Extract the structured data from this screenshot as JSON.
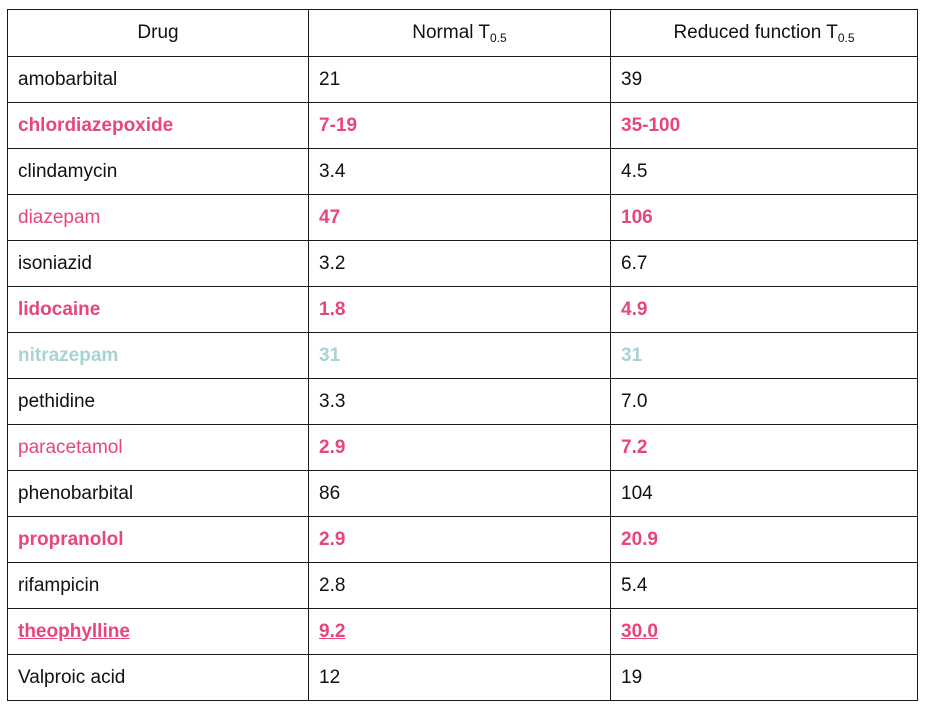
{
  "headers": {
    "drug": "Drug",
    "normal": "Normal T",
    "normal_sub": "0.5",
    "reduced": "Reduced function T",
    "reduced_sub": "0.5"
  },
  "rows": [
    {
      "drug": "amobarbital",
      "normal": "21",
      "reduced": "39"
    },
    {
      "drug": "chlordiazepoxide",
      "normal": "7-19",
      "reduced": "35-100"
    },
    {
      "drug": "clindamycin",
      "normal": "3.4",
      "reduced": "4.5"
    },
    {
      "drug": "diazepam",
      "normal": "47",
      "reduced": "106"
    },
    {
      "drug": "isoniazid",
      "normal": "3.2",
      "reduced": "6.7"
    },
    {
      "drug": "lidocaine",
      "normal": "1.8",
      "reduced": "4.9"
    },
    {
      "drug": "nitrazepam",
      "normal": "31",
      "reduced": "31"
    },
    {
      "drug": "pethidine",
      "normal": "3.3",
      "reduced": "7.0"
    },
    {
      "drug": "paracetamol",
      "normal": "2.9",
      "reduced": "7.2"
    },
    {
      "drug": "phenobarbital",
      "normal": "86",
      "reduced": "104"
    },
    {
      "drug": "propranolol",
      "normal": "2.9",
      "reduced": "20.9"
    },
    {
      "drug": "rifampicin",
      "normal": "2.8",
      "reduced": "5.4"
    },
    {
      "drug": "theophylline",
      "normal": "9.2",
      "reduced": "30.0"
    },
    {
      "drug": "Valproic acid",
      "normal": "12",
      "reduced": "19"
    }
  ],
  "colors": {
    "highlight_pink": "#e8457f",
    "highlight_teal": "#a9d3d3",
    "text": "#111111",
    "border": "#1a1a1a"
  }
}
